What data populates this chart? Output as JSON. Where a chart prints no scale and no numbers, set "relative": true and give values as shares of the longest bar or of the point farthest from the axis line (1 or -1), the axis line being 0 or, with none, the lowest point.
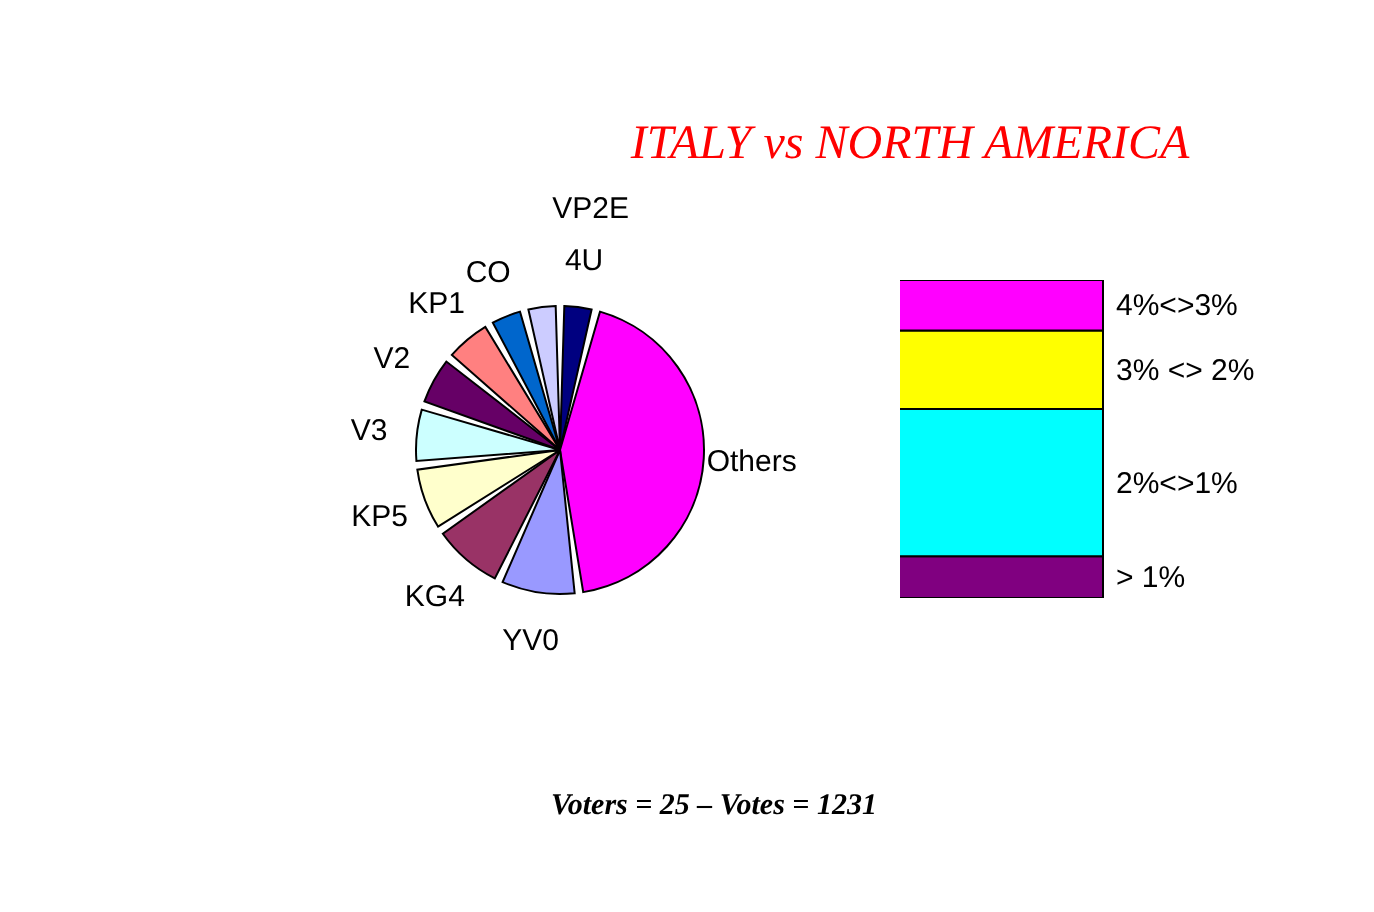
{
  "chart_data": [
    {
      "type": "pie",
      "title": "ITALY vs NORTH AMERICA",
      "annotations": [
        "Voters = 25 – Votes = 1231"
      ],
      "categories": [
        "4U",
        "Others",
        "YV0",
        "KG4",
        "KP5",
        "V3",
        "V2",
        "KP1",
        "CO",
        "VP2E"
      ],
      "values": [
        4.0,
        43.9,
        9.1,
        8.6,
        7.7,
        6.7,
        6.0,
        5.8,
        4.2,
        4.0
      ],
      "colors": [
        "#000080",
        "#ff00ff",
        "#9999ff",
        "#993366",
        "#ffffcc",
        "#ccffff",
        "#660066",
        "#ff8080",
        "#0066cc",
        "#ccccff"
      ],
      "legend": false
    },
    {
      "type": "bar",
      "stacked": true,
      "relative": true,
      "categories": [
        null
      ],
      "legend": false,
      "series": [
        {
          "name": "> 1%",
          "color": "#800080",
          "values": [
            0.131
          ]
        },
        {
          "name": "2%<>1%",
          "color": "#00ffff",
          "values": [
            0.463
          ]
        },
        {
          "name": "3% <> 2%",
          "color": "#ffff00",
          "values": [
            0.247
          ]
        },
        {
          "name": "4%<>3%",
          "color": "#ff00ff",
          "values": [
            0.159
          ]
        }
      ]
    }
  ]
}
